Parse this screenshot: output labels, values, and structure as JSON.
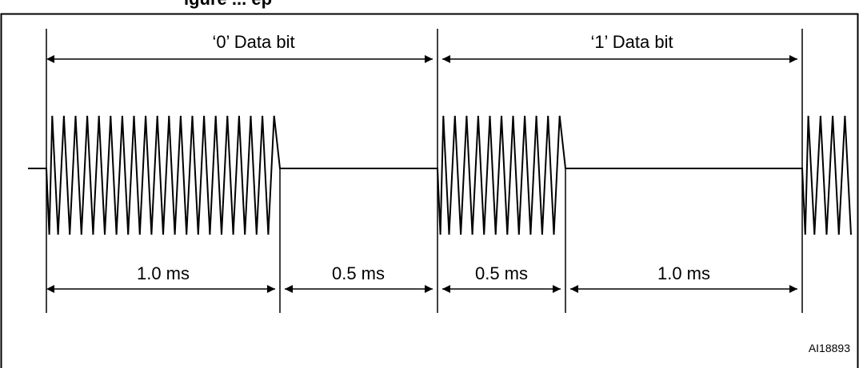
{
  "header": {
    "title_fragment": "igure ... ep"
  },
  "bits": [
    {
      "label": "‘0’ Data bit",
      "burst_duration": "1.0 ms",
      "gap_duration": "0.5 ms"
    },
    {
      "label": "‘1’ Data bit",
      "burst_duration": "0.5 ms",
      "gap_duration": "1.0 ms"
    }
  ],
  "figure_ref": "AI18893",
  "colors": {
    "line": "#000000",
    "background": "#ffffff"
  }
}
